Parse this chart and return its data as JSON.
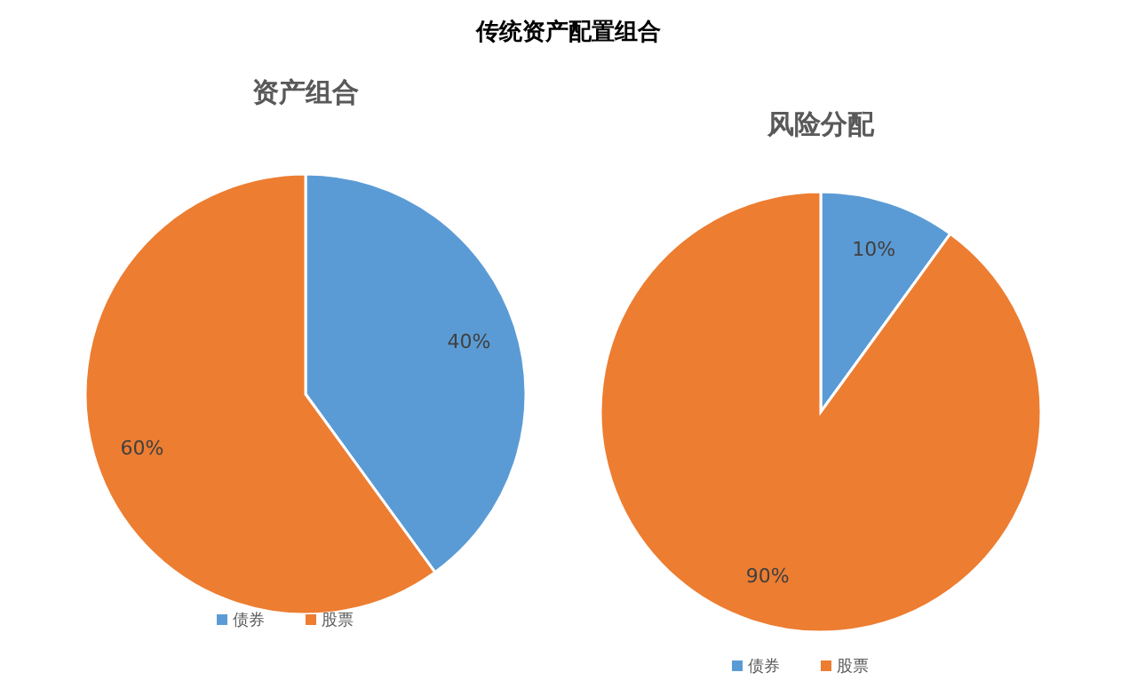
{
  "chart_data": [
    {
      "type": "pie",
      "title": "传统资产配置组合",
      "subtitle": "资产组合",
      "categories": [
        "债券",
        "股票"
      ],
      "values": [
        40,
        60
      ],
      "colors": [
        "#5b9bd5",
        "#ed7d31"
      ],
      "value_labels": [
        "40%",
        "60%"
      ],
      "legend": "bottom"
    },
    {
      "type": "pie",
      "subtitle": "风险分配",
      "categories": [
        "债券",
        "股票"
      ],
      "values": [
        10,
        90
      ],
      "colors": [
        "#5b9bd5",
        "#ed7d31"
      ],
      "value_labels": [
        "10%",
        "90%"
      ],
      "legend": "bottom"
    }
  ]
}
